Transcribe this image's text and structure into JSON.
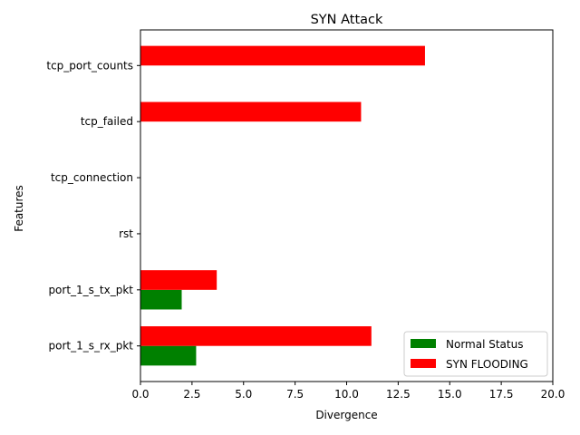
{
  "chart_data": {
    "type": "bar",
    "orientation": "horizontal",
    "title": "SYN Attack",
    "xlabel": "Divergence",
    "ylabel": "Features",
    "categories": [
      "port_1_s_rx_pkt",
      "port_1_s_tx_pkt",
      "rst",
      "tcp_connection",
      "tcp_failed",
      "tcp_port_counts"
    ],
    "series": [
      {
        "name": "Normal Status",
        "color": "#008000",
        "values": [
          2.7,
          2.0,
          0,
          0,
          0,
          0
        ]
      },
      {
        "name": "SYN FLOODING",
        "color": "#ff0000",
        "values": [
          11.2,
          3.7,
          0,
          0,
          10.7,
          13.8
        ]
      }
    ],
    "xlim": [
      0,
      20
    ],
    "xticks": [
      0.0,
      2.5,
      5.0,
      7.5,
      10.0,
      12.5,
      15.0,
      17.5,
      20.0
    ],
    "xtick_labels": [
      "0.0",
      "2.5",
      "5.0",
      "7.5",
      "10.0",
      "12.5",
      "15.0",
      "17.5",
      "20.0"
    ],
    "grid": false,
    "legend_position": "lower right"
  }
}
